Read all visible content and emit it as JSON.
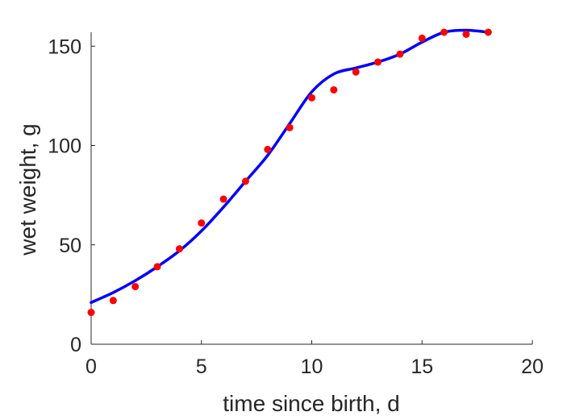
{
  "chart_data": {
    "type": "scatter",
    "title": "",
    "xlabel": "time since birth, d",
    "ylabel": "wet weight, g",
    "xlim": [
      0,
      20
    ],
    "ylim": [
      0,
      157
    ],
    "xticks": [
      0,
      5,
      10,
      15,
      20
    ],
    "yticks": [
      0,
      50,
      100,
      150
    ],
    "grid": false,
    "legend": "none",
    "series": [
      {
        "kind": "points",
        "color": "#ff0000",
        "x": [
          0,
          1,
          2,
          3,
          4,
          5,
          6,
          7,
          8,
          9,
          10,
          11,
          12,
          13,
          14,
          15,
          16,
          17,
          18
        ],
        "y": [
          16,
          22,
          29,
          39,
          48,
          61,
          73,
          82,
          98,
          109,
          124,
          128,
          137,
          142,
          146,
          154,
          157,
          156,
          157
        ]
      },
      {
        "kind": "line",
        "color": "#0000ff",
        "x": [
          0,
          1,
          2,
          3,
          4,
          5,
          6,
          7,
          8,
          9,
          10,
          11,
          12,
          13,
          14,
          15,
          16,
          17,
          18
        ],
        "y": [
          21,
          26,
          32,
          39,
          47,
          57,
          69,
          82,
          95,
          111,
          127,
          136,
          139,
          142,
          146,
          152,
          157,
          158,
          157
        ]
      }
    ]
  }
}
